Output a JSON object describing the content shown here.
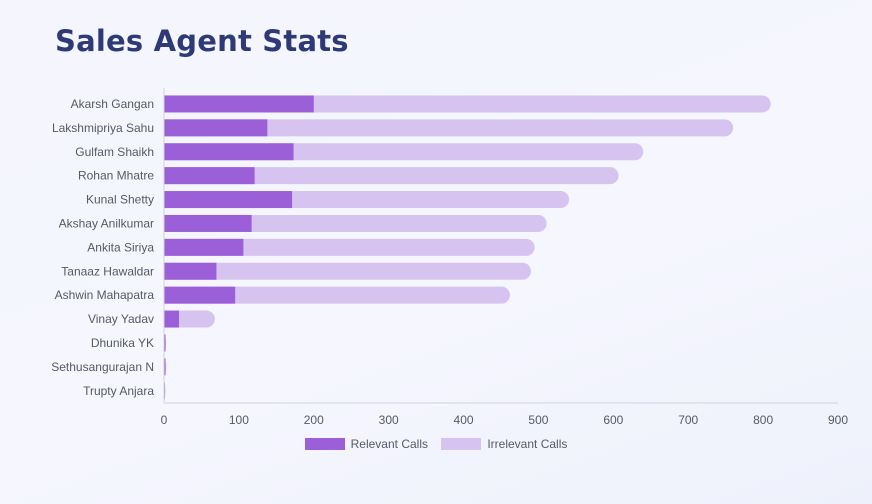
{
  "page": {
    "title": "Sales Agent Stats"
  },
  "colors": {
    "relevant": "#9b5fd8",
    "irrelevant": "#d7c3ef",
    "axis": "#cfd3de",
    "text": "#555a66",
    "title": "#2e3a76"
  },
  "chart_data": {
    "type": "bar",
    "orientation": "horizontal",
    "stacked": true,
    "title": "Sales Agent Stats",
    "categories": [
      "Akarsh Gangan",
      "Lakshmipriya Sahu",
      "Gulfam Shaikh",
      "Rohan Mhatre",
      "Kunal Shetty",
      "Akshay Anilkumar",
      "Ankita Siriya",
      "Tanaaz Hawaldar",
      "Ashwin Mahapatra",
      "Vinay Yadav",
      "Dhunika YK",
      "Sethusangurajan N",
      "Trupty Anjara"
    ],
    "series": [
      {
        "name": "Relevant Calls",
        "values": [
          200,
          138,
          173,
          121,
          171,
          117,
          106,
          70,
          95,
          20,
          2,
          2,
          1
        ]
      },
      {
        "name": "Irrelevant Calls",
        "values": [
          610,
          622,
          467,
          486,
          370,
          394,
          389,
          420,
          367,
          48,
          1,
          1,
          1
        ]
      }
    ],
    "xlim": [
      0,
      900
    ],
    "xticks": [
      "0",
      "100",
      "200",
      "300",
      "400",
      "500",
      "600",
      "700",
      "800",
      "900"
    ],
    "grid": false,
    "legend_position": "bottom"
  }
}
